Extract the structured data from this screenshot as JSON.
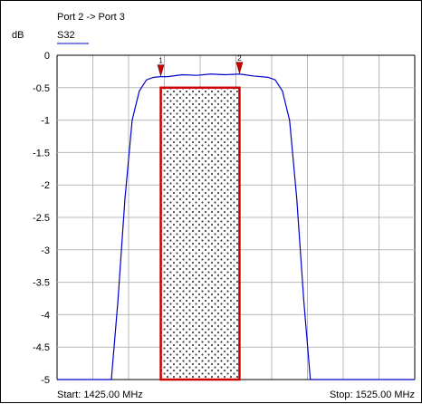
{
  "chart_data": {
    "type": "line",
    "title": "Port 2  -> Port 3",
    "ylabel": "dB",
    "xlabel": "",
    "grid": true,
    "legend": [
      {
        "name": "S32",
        "color": "#0000cc"
      }
    ],
    "xlim": [
      1425,
      1525
    ],
    "ylim": [
      -5,
      0
    ],
    "yticks": [
      "0",
      "-0.5",
      "-1",
      "-1.5",
      "-2",
      "-2.5",
      "-3",
      "-3.5",
      "-4",
      "-4.5",
      "-5"
    ],
    "start_label": "Start: 1425.00 MHz",
    "stop_label": "Stop: 1525.00 MHz",
    "series": [
      {
        "name": "S32",
        "color": "#0000cc",
        "x": [
          1425,
          1440,
          1440.2,
          1442,
          1444,
          1446,
          1448,
          1450,
          1452,
          1454,
          1456,
          1460,
          1464,
          1468,
          1472,
          1476,
          1480,
          1484,
          1486,
          1488,
          1490,
          1492,
          1494,
          1495.8,
          1496,
          1525
        ],
        "y": [
          -5,
          -5,
          -4.99,
          -3.8,
          -2.2,
          -1.0,
          -0.55,
          -0.38,
          -0.34,
          -0.33,
          -0.33,
          -0.3,
          -0.31,
          -0.29,
          -0.3,
          -0.29,
          -0.32,
          -0.34,
          -0.38,
          -0.55,
          -1.0,
          -2.2,
          -3.8,
          -4.99,
          -5,
          -5
        ]
      }
    ],
    "markers": [
      {
        "label": "1",
        "x": 1454,
        "y": -0.33
      },
      {
        "label": "2",
        "x": 1476,
        "y": -0.29
      }
    ],
    "mask": {
      "x_start": 1454,
      "x_end": 1476,
      "y_top": -0.5,
      "y_bottom": -5,
      "color": "#cc0000"
    }
  }
}
